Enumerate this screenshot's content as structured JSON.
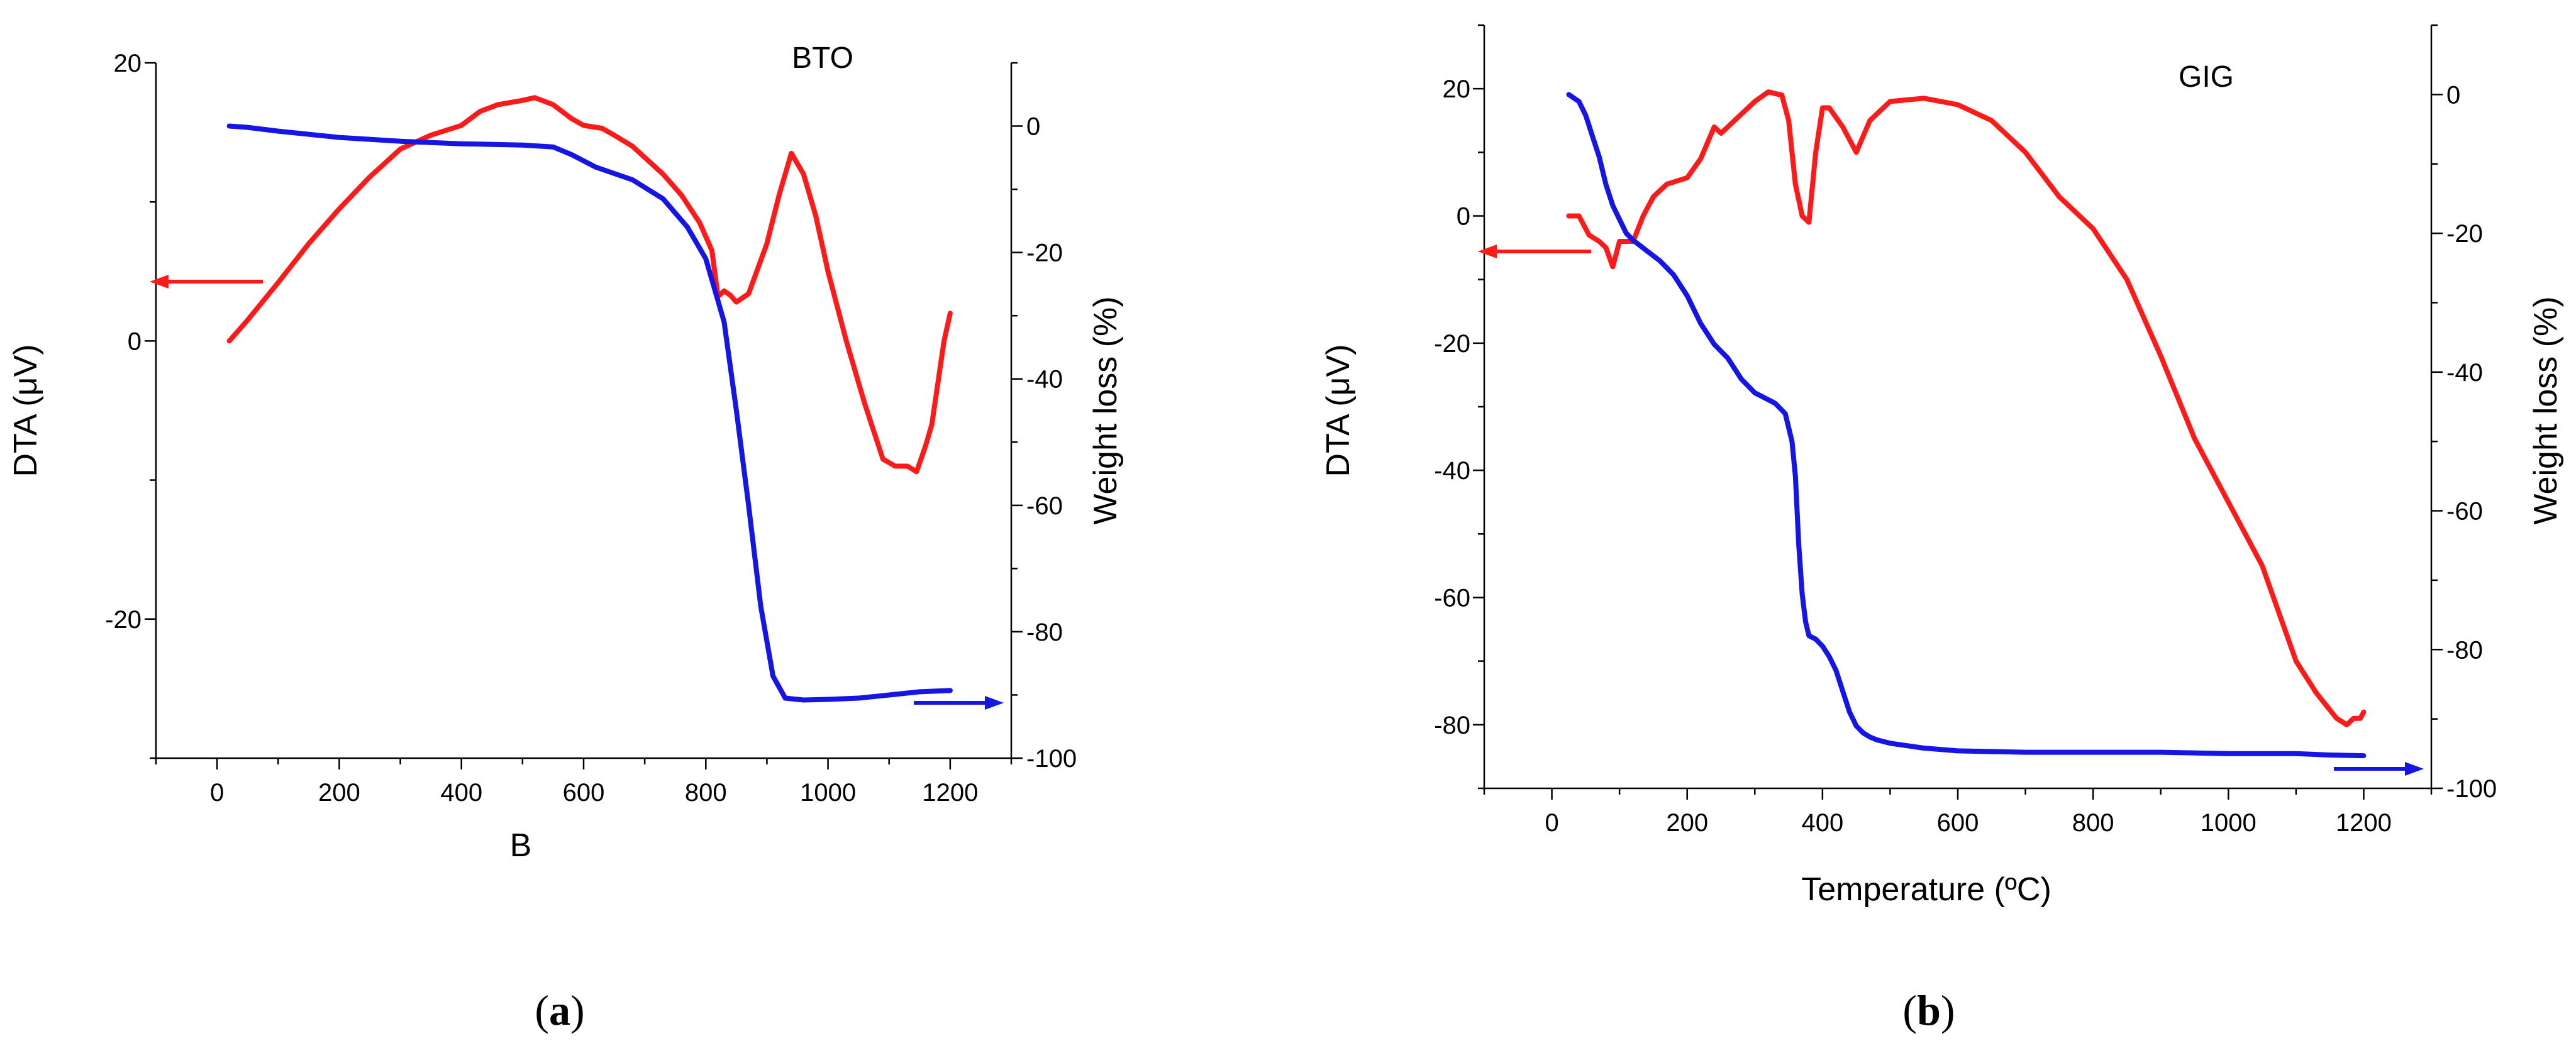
{
  "colors": {
    "dta": "#ff1a1a",
    "weight": "#1515e6",
    "axis": "#000000"
  },
  "chart_data": [
    {
      "type": "line",
      "panel_label": "BTO",
      "caption": "a",
      "xlabel": "B",
      "ylabel_left": "DTA (μV)",
      "ylabel_right": "Weight loss (%)",
      "xlim": [
        -100,
        1300
      ],
      "ylim_left": [
        -30,
        20
      ],
      "ylim_right": [
        -100,
        10
      ],
      "x_ticks": [
        0,
        200,
        400,
        600,
        800,
        1000,
        1200
      ],
      "y_left_ticks": [
        -20,
        0,
        20
      ],
      "y_right_ticks": [
        -100,
        -80,
        -60,
        -40,
        -20,
        0
      ],
      "indicator_arrows": [
        {
          "series": "DTA",
          "direction": "left",
          "axis": "left"
        },
        {
          "series": "Weight loss",
          "direction": "right",
          "axis": "right"
        }
      ],
      "series": [
        {
          "name": "DTA",
          "axis": "left",
          "color": "#ff1a1a",
          "x": [
            20,
            50,
            100,
            150,
            200,
            250,
            300,
            350,
            400,
            430,
            460,
            500,
            520,
            550,
            580,
            600,
            630,
            650,
            680,
            700,
            730,
            760,
            790,
            810,
            820,
            830,
            840,
            850,
            870,
            900,
            920,
            940,
            960,
            980,
            1000,
            1030,
            1060,
            1090,
            1110,
            1130,
            1145,
            1160,
            1170,
            1180,
            1190,
            1200
          ],
          "y": [
            0,
            1.5,
            4.2,
            7,
            9.5,
            11.8,
            13.8,
            14.8,
            15.5,
            16.5,
            17,
            17.3,
            17.5,
            17,
            16,
            15.5,
            15.3,
            14.8,
            14,
            13.2,
            12,
            10.5,
            8.5,
            6.5,
            3.2,
            3.6,
            3.3,
            2.8,
            3.4,
            7,
            10.5,
            13.5,
            12,
            9,
            5,
            0,
            -4.5,
            -8.5,
            -9,
            -9,
            -9.4,
            -7.5,
            -6,
            -3,
            0,
            2
          ]
        },
        {
          "name": "Weight loss",
          "axis": "right",
          "color": "#1515e6",
          "x": [
            20,
            50,
            100,
            200,
            300,
            400,
            500,
            550,
            580,
            620,
            680,
            730,
            770,
            800,
            830,
            850,
            870,
            890,
            910,
            930,
            960,
            1000,
            1050,
            1100,
            1150,
            1200
          ],
          "y": [
            0,
            -0.2,
            -0.8,
            -1.8,
            -2.4,
            -2.8,
            -3,
            -3.3,
            -4.5,
            -6.5,
            -8.5,
            -11.5,
            -16,
            -21,
            -31,
            -45,
            -60,
            -76,
            -87,
            -90.5,
            -90.8,
            -90.7,
            -90.5,
            -90,
            -89.5,
            -89.3
          ]
        }
      ]
    },
    {
      "type": "line",
      "panel_label": "GIG",
      "caption": "b",
      "xlabel": "Temperature (ºC)",
      "ylabel_left": "DTA (μV)",
      "ylabel_right": "Weight loss (%)",
      "xlim": [
        -100,
        1300
      ],
      "ylim_left": [
        -90,
        30
      ],
      "ylim_right": [
        -100,
        10
      ],
      "x_ticks": [
        0,
        200,
        400,
        600,
        800,
        1000,
        1200
      ],
      "y_left_ticks": [
        -80,
        -60,
        -40,
        -20,
        0,
        20
      ],
      "y_right_ticks": [
        -100,
        -80,
        -60,
        -40,
        -20,
        0
      ],
      "indicator_arrows": [
        {
          "series": "DTA",
          "direction": "left",
          "axis": "left"
        },
        {
          "series": "Weight loss",
          "direction": "right",
          "axis": "right"
        }
      ],
      "series": [
        {
          "name": "DTA",
          "axis": "left",
          "color": "#ff1a1a",
          "x": [
            25,
            40,
            55,
            70,
            80,
            90,
            100,
            110,
            120,
            135,
            150,
            170,
            200,
            220,
            240,
            250,
            270,
            300,
            320,
            340,
            350,
            360,
            370,
            380,
            390,
            400,
            410,
            430,
            450,
            470,
            500,
            550,
            600,
            650,
            700,
            750,
            800,
            850,
            900,
            950,
            1000,
            1050,
            1100,
            1130,
            1160,
            1175,
            1185,
            1195,
            1200
          ],
          "y": [
            0,
            0,
            -3,
            -4,
            -5,
            -8,
            -4,
            -4,
            -4,
            0,
            3,
            5,
            6,
            9,
            14,
            13,
            15,
            18,
            19.5,
            19,
            15,
            5,
            0,
            -1,
            10,
            17,
            17,
            14,
            10,
            15,
            18,
            18.5,
            17.5,
            15,
            10,
            3,
            -2,
            -10,
            -22,
            -35,
            -45,
            -55,
            -70,
            -75,
            -79,
            -80,
            -79,
            -79,
            -78
          ]
        },
        {
          "name": "Weight loss",
          "axis": "right",
          "color": "#1515e6",
          "x": [
            25,
            40,
            50,
            60,
            70,
            80,
            90,
            100,
            110,
            120,
            140,
            160,
            180,
            200,
            220,
            240,
            260,
            280,
            300,
            330,
            345,
            355,
            360,
            365,
            370,
            375,
            380,
            390,
            400,
            410,
            420,
            430,
            440,
            450,
            460,
            470,
            480,
            500,
            550,
            600,
            700,
            800,
            900,
            1000,
            1100,
            1150,
            1200
          ],
          "y": [
            0,
            -1,
            -3,
            -6,
            -9,
            -13,
            -16,
            -18,
            -20,
            -21,
            -22.5,
            -24,
            -26,
            -29,
            -33,
            -36,
            -38,
            -41,
            -43,
            -44.5,
            -46,
            -50,
            -55,
            -65,
            -72,
            -76,
            -78,
            -78.5,
            -79.5,
            -81,
            -83,
            -86,
            -89,
            -91,
            -92,
            -92.6,
            -93,
            -93.5,
            -94.2,
            -94.6,
            -94.8,
            -94.8,
            -94.8,
            -95,
            -95,
            -95.2,
            -95.3
          ]
        }
      ]
    }
  ]
}
